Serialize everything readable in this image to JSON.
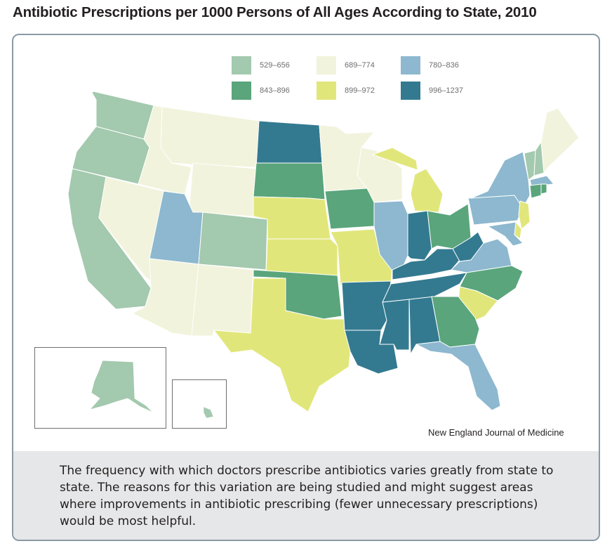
{
  "title": "Antibiotic Prescriptions per 1000 Persons of All Ages According to State, 2010",
  "legend": [
    {
      "label": "529–656",
      "color": "#a3c9ae"
    },
    {
      "label": "689–774",
      "color": "#f1f3dc"
    },
    {
      "label": "780–836",
      "color": "#8db8cf"
    },
    {
      "label": "843–896",
      "color": "#5aa57c"
    },
    {
      "label": "899–972",
      "color": "#e1e67a"
    },
    {
      "label": "996–1237",
      "color": "#337a90"
    }
  ],
  "map": {
    "states": [
      {
        "id": "WA",
        "range": "529–656"
      },
      {
        "id": "OR",
        "range": "529–656"
      },
      {
        "id": "CA",
        "range": "529–656"
      },
      {
        "id": "CO",
        "range": "529–656"
      },
      {
        "id": "AK",
        "range": "529–656"
      },
      {
        "id": "HI",
        "range": "529–656"
      },
      {
        "id": "VT",
        "range": "529–656"
      },
      {
        "id": "NH",
        "range": "529–656"
      },
      {
        "id": "ID",
        "range": "689–774"
      },
      {
        "id": "NV",
        "range": "689–774"
      },
      {
        "id": "MT",
        "range": "689–774"
      },
      {
        "id": "WY",
        "range": "689–774"
      },
      {
        "id": "AZ",
        "range": "689–774"
      },
      {
        "id": "NM",
        "range": "689–774"
      },
      {
        "id": "MN",
        "range": "689–774"
      },
      {
        "id": "WI",
        "range": "689–774"
      },
      {
        "id": "ME",
        "range": "689–774"
      },
      {
        "id": "UT",
        "range": "780–836"
      },
      {
        "id": "IL",
        "range": "780–836"
      },
      {
        "id": "NY",
        "range": "780–836"
      },
      {
        "id": "PA",
        "range": "780–836"
      },
      {
        "id": "VA",
        "range": "780–836"
      },
      {
        "id": "FL",
        "range": "780–836"
      },
      {
        "id": "MA",
        "range": "780–836"
      },
      {
        "id": "MD",
        "range": "780–836"
      },
      {
        "id": "SD",
        "range": "843–896"
      },
      {
        "id": "IA",
        "range": "843–896"
      },
      {
        "id": "OK",
        "range": "843–896"
      },
      {
        "id": "OH",
        "range": "843–896"
      },
      {
        "id": "NC",
        "range": "843–896"
      },
      {
        "id": "GA",
        "range": "843–896"
      },
      {
        "id": "CT",
        "range": "843–896"
      },
      {
        "id": "RI",
        "range": "843–896"
      },
      {
        "id": "NE",
        "range": "899–972"
      },
      {
        "id": "KS",
        "range": "899–972"
      },
      {
        "id": "MO",
        "range": "899–972"
      },
      {
        "id": "TX",
        "range": "899–972"
      },
      {
        "id": "MI",
        "range": "899–972"
      },
      {
        "id": "SC",
        "range": "899–972"
      },
      {
        "id": "NJ",
        "range": "899–972"
      },
      {
        "id": "DE",
        "range": "899–972"
      },
      {
        "id": "ND",
        "range": "996–1237"
      },
      {
        "id": "AR",
        "range": "996–1237"
      },
      {
        "id": "LA",
        "range": "996–1237"
      },
      {
        "id": "MS",
        "range": "996–1237"
      },
      {
        "id": "AL",
        "range": "996–1237"
      },
      {
        "id": "TN",
        "range": "996–1237"
      },
      {
        "id": "KY",
        "range": "996–1237"
      },
      {
        "id": "IN",
        "range": "996–1237"
      },
      {
        "id": "WV",
        "range": "996–1237"
      }
    ]
  },
  "credit": "New England Journal of Medicine",
  "caption": "The frequency with which doctors prescribe antibiotics varies greatly from state to state. The reasons for this variation are being studied and might suggest areas where improvements in antibiotic prescribing (fewer unnecessary prescriptions) would be most helpful."
}
